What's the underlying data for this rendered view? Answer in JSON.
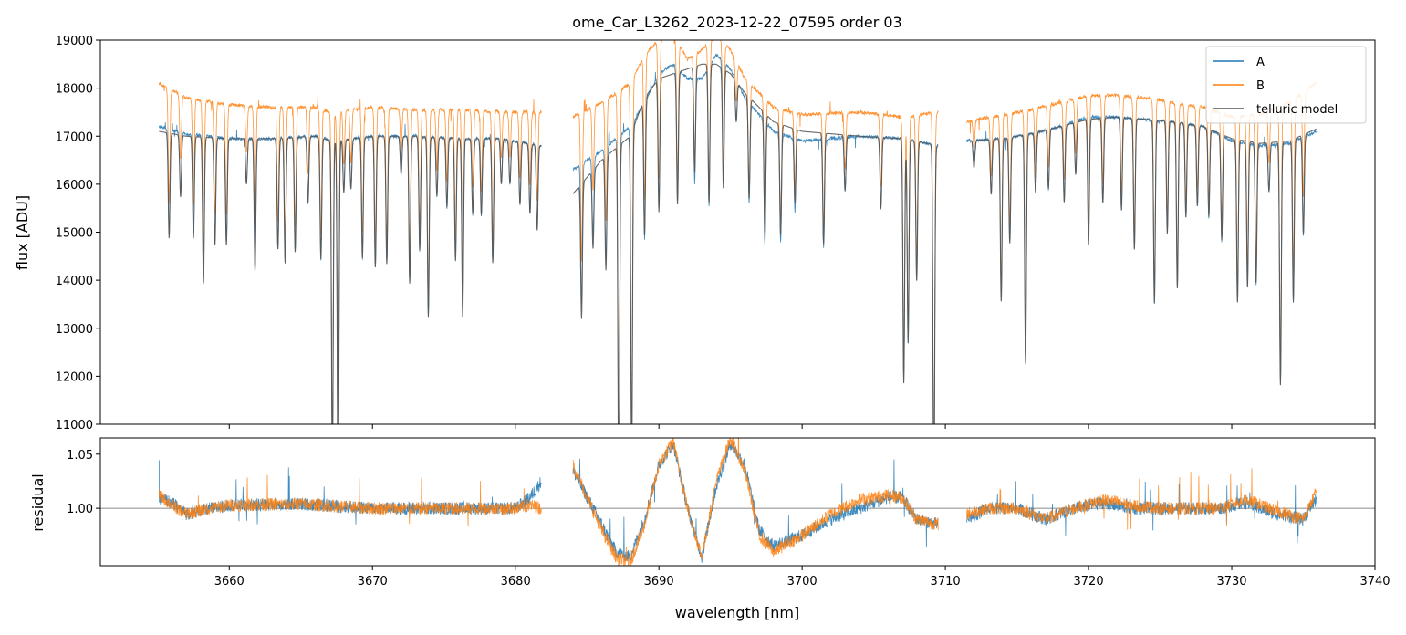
{
  "chart_data": {
    "type": "line",
    "title": "ome_Car_L3262_2023-12-22_07595  order 03",
    "xlabel": "wavelength [nm]",
    "xlim": [
      3651,
      3740
    ],
    "xticks": [
      "3660",
      "3670",
      "3680",
      "3690",
      "3700",
      "3710",
      "3720",
      "3730",
      "3740"
    ],
    "xtick_values": [
      3660,
      3670,
      3680,
      3690,
      3700,
      3710,
      3720,
      3730,
      3740
    ],
    "top_panel": {
      "ylabel": "flux [ADU]",
      "ylim": [
        11000,
        19000
      ],
      "yticks": [
        "11000",
        "12000",
        "13000",
        "14000",
        "15000",
        "16000",
        "17000",
        "18000",
        "19000"
      ],
      "ytick_values": [
        11000,
        12000,
        13000,
        14000,
        15000,
        16000,
        17000,
        18000,
        19000
      ],
      "legend": {
        "position": "top-right",
        "entries": [
          "A",
          "B",
          "telluric model"
        ]
      },
      "series": [
        {
          "name": "A",
          "color": "#1f77b4",
          "segments": [
            {
              "x": [
                3655.1,
                3657,
                3660,
                3663,
                3666,
                3667.2,
                3670,
                3673,
                3676,
                3679,
                3681.8
              ],
              "y": [
                17200,
                17050,
                16950,
                16950,
                17000,
                16900,
                17000,
                17000,
                16950,
                16950,
                16800
              ]
            },
            {
              "x": [
                3684.0,
                3686,
                3688,
                3689,
                3690,
                3691,
                3692,
                3693,
                3694,
                3695,
                3696,
                3698,
                3700,
                3704,
                3707,
                3709.5
              ],
              "y": [
                16300,
                16700,
                17200,
                17700,
                18300,
                18500,
                18200,
                18200,
                18700,
                18400,
                17800,
                17100,
                16900,
                17000,
                16950,
                16800
              ]
            },
            {
              "x": [
                3711.5,
                3714,
                3716,
                3718,
                3720,
                3722,
                3724,
                3726,
                3728,
                3730,
                3732,
                3734,
                3735.9
              ],
              "y": [
                16900,
                16950,
                17050,
                17200,
                17400,
                17400,
                17350,
                17300,
                17200,
                16900,
                16800,
                16850,
                17100
              ]
            }
          ]
        },
        {
          "name": "B",
          "color": "#ff7f0e",
          "segments": [
            {
              "x": [
                3655.1,
                3657,
                3660,
                3663,
                3666,
                3667.2,
                3670,
                3673,
                3676,
                3679,
                3681.8
              ],
              "y": [
                18100,
                17800,
                17650,
                17600,
                17600,
                17500,
                17600,
                17550,
                17550,
                17500,
                17500
              ]
            },
            {
              "x": [
                3684.0,
                3686,
                3688,
                3689,
                3690,
                3691,
                3692,
                3693,
                3694,
                3695,
                3696,
                3698,
                3700,
                3704,
                3707,
                3709.5
              ],
              "y": [
                17400,
                17700,
                18100,
                18700,
                19000,
                19100,
                18600,
                18800,
                19100,
                18800,
                18200,
                17600,
                17450,
                17500,
                17400,
                17500
              ]
            },
            {
              "x": [
                3711.5,
                3714,
                3716,
                3718,
                3720,
                3722,
                3724,
                3726,
                3728,
                3730,
                3732,
                3734,
                3735.9
              ],
              "y": [
                17300,
                17450,
                17550,
                17700,
                17850,
                17850,
                17800,
                17700,
                17600,
                17400,
                17450,
                17700,
                18100
              ]
            }
          ]
        },
        {
          "name": "telluric model",
          "color": "#555555",
          "segments": [
            {
              "x": [
                3655.1,
                3657,
                3660,
                3663,
                3666,
                3667.2,
                3670,
                3673,
                3676,
                3679,
                3681.8
              ],
              "y": [
                17100,
                17000,
                16950,
                16950,
                17000,
                16900,
                17000,
                17000,
                16950,
                16950,
                16800
              ]
            },
            {
              "x": [
                3684.0,
                3686,
                3688,
                3689,
                3690,
                3691,
                3692,
                3693,
                3694,
                3695,
                3696,
                3698,
                3700,
                3704,
                3707,
                3709.5
              ],
              "y": [
                15800,
                16500,
                17000,
                17800,
                18200,
                18300,
                18400,
                18500,
                18500,
                18300,
                17900,
                17300,
                17100,
                17000,
                16950,
                16800
              ]
            },
            {
              "x": [
                3711.5,
                3714,
                3716,
                3718,
                3720,
                3722,
                3724,
                3726,
                3728,
                3730,
                3732,
                3734,
                3735.9
              ],
              "y": [
                16900,
                16950,
                17050,
                17200,
                17350,
                17400,
                17350,
                17300,
                17200,
                16950,
                16850,
                16900,
                17150
              ]
            }
          ]
        }
      ]
    },
    "bottom_panel": {
      "ylabel": "residual",
      "ylim": [
        0.947,
        1.065
      ],
      "yticks": [
        "1.00",
        "1.05"
      ],
      "ytick_values": [
        1.0,
        1.05
      ],
      "reference_line": 1.0,
      "series": [
        {
          "name": "A",
          "color": "#1f77b4",
          "segments": [
            {
              "x": [
                3655.1,
                3656,
                3657,
                3658,
                3660,
                3665,
                3670,
                3675,
                3680,
                3681,
                3681.8
              ],
              "y": [
                1.01,
                1.005,
                0.995,
                0.998,
                1.003,
                1.004,
                1.0,
                1.0,
                1.0,
                1.01,
                1.025
              ]
            },
            {
              "x": [
                3684.0,
                3685,
                3686,
                3687,
                3688,
                3689,
                3690,
                3691,
                3692,
                3693,
                3694,
                3695,
                3696,
                3697,
                3698,
                3700,
                3702,
                3704,
                3706,
                3707,
                3708,
                3709.5
              ],
              "y": [
                1.035,
                1.01,
                0.985,
                0.96,
                0.955,
                0.99,
                1.04,
                1.06,
                1.0,
                0.955,
                1.02,
                1.06,
                1.04,
                0.98,
                0.965,
                0.975,
                0.99,
                1.0,
                1.01,
                1.01,
                0.99,
                0.985
              ]
            },
            {
              "x": [
                3711.5,
                3713,
                3715,
                3717,
                3719,
                3721,
                3723,
                3725,
                3727,
                3729,
                3731,
                3733,
                3735,
                3735.9
              ],
              "y": [
                0.99,
                1.0,
                1.0,
                0.99,
                1.0,
                1.005,
                1.0,
                1.0,
                1.0,
                1.0,
                1.005,
                0.995,
                0.99,
                1.01
              ]
            }
          ]
        },
        {
          "name": "B",
          "color": "#ff7f0e",
          "segments": [
            {
              "x": [
                3655.1,
                3656,
                3657,
                3658,
                3660,
                3665,
                3670,
                3675,
                3680,
                3681,
                3681.8
              ],
              "y": [
                1.012,
                1.003,
                0.995,
                0.998,
                1.003,
                1.004,
                1.0,
                1.0,
                1.0,
                1.003,
                1.0
              ]
            },
            {
              "x": [
                3684.0,
                3685,
                3686,
                3687,
                3688,
                3689,
                3690,
                3691,
                3692,
                3693,
                3694,
                3695,
                3696,
                3697,
                3698,
                3700,
                3702,
                3704,
                3706,
                3707,
                3708,
                3709.5
              ],
              "y": [
                1.04,
                1.01,
                0.98,
                0.955,
                0.95,
                0.985,
                1.04,
                1.062,
                1.0,
                0.955,
                1.025,
                1.065,
                1.035,
                0.975,
                0.96,
                0.975,
                0.995,
                1.008,
                1.012,
                1.01,
                0.99,
                0.985
              ]
            },
            {
              "x": [
                3711.5,
                3713,
                3715,
                3717,
                3719,
                3721,
                3723,
                3725,
                3727,
                3729,
                3731,
                3733,
                3735,
                3735.9
              ],
              "y": [
                0.995,
                1.0,
                1.0,
                0.99,
                1.0,
                1.008,
                1.003,
                1.0,
                1.0,
                1.0,
                1.008,
                0.998,
                0.99,
                1.015
              ]
            }
          ]
        }
      ]
    }
  }
}
